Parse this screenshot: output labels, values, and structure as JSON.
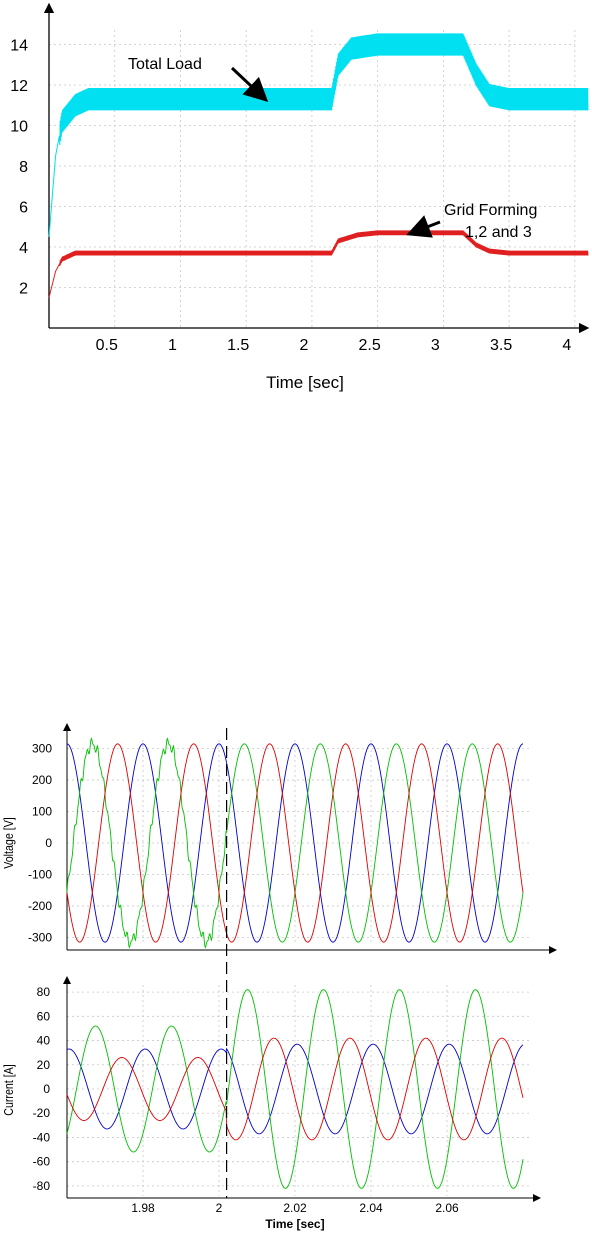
{
  "chart_data": [
    {
      "type": "line",
      "xlabel": "Time [sec]",
      "ylabel": "",
      "xlim": [
        0,
        4.1
      ],
      "ylim": [
        0,
        16
      ],
      "x_ticks": [
        "0.5",
        "1",
        "1.5",
        "2",
        "2.5",
        "3",
        "3.5",
        "4"
      ],
      "y_ticks": [
        "2",
        "4",
        "6",
        "8",
        "10",
        "12",
        "14"
      ],
      "grid": true,
      "annotations": [
        {
          "text": "Total Load",
          "points_to": {
            "x": 1.7,
            "y": 11.2
          }
        },
        {
          "text": "Grid Forming",
          "text_line2": "1,2 and 3",
          "points_to": {
            "x": 2.7,
            "y": 4.6
          }
        }
      ],
      "series": [
        {
          "color": "#00e0f0",
          "points": [
            [
              0,
              4.5
            ],
            [
              0.05,
              8.5
            ],
            [
              0.1,
              10.2
            ],
            [
              0.2,
              11.0
            ],
            [
              0.3,
              11.3
            ],
            [
              1.0,
              11.3
            ],
            [
              2.15,
              11.3
            ],
            [
              2.2,
              13.0
            ],
            [
              2.3,
              13.8
            ],
            [
              2.5,
              14.0
            ],
            [
              3.15,
              14.0
            ],
            [
              3.25,
              12.5
            ],
            [
              3.35,
              11.5
            ],
            [
              3.5,
              11.3
            ],
            [
              4.1,
              11.3
            ]
          ]
        },
        {
          "color": "#e02020",
          "points": [
            [
              0,
              1.5
            ],
            [
              0.05,
              2.8
            ],
            [
              0.1,
              3.4
            ],
            [
              0.2,
              3.7
            ],
            [
              0.4,
              3.7
            ],
            [
              2.15,
              3.7
            ],
            [
              2.2,
              4.3
            ],
            [
              2.35,
              4.6
            ],
            [
              2.5,
              4.7
            ],
            [
              3.15,
              4.7
            ],
            [
              3.25,
              4.1
            ],
            [
              3.35,
              3.8
            ],
            [
              3.5,
              3.7
            ],
            [
              4.1,
              3.7
            ]
          ]
        }
      ]
    },
    {
      "type": "line",
      "xlabel": "",
      "ylabel": "Voltage [V]",
      "xlim": [
        1.96,
        2.08
      ],
      "ylim": [
        -340,
        340
      ],
      "y_ticks": [
        "300",
        "200",
        "100",
        "0",
        "-100",
        "-200",
        "-300"
      ],
      "grid": true,
      "event_line_x": 2.002,
      "series": [
        {
          "color": "#0000d0",
          "amplitude": 315,
          "frequency_hz": 50,
          "phase_deg": 90
        },
        {
          "color": "#00c000",
          "amplitude": 315,
          "frequency_hz": 50,
          "phase_deg": -30
        },
        {
          "color": "#e00000",
          "amplitude": 315,
          "frequency_hz": 50,
          "phase_deg": 210
        }
      ]
    },
    {
      "type": "line",
      "xlabel": "Time [sec]",
      "ylabel": "Current [A]",
      "xlim": [
        1.96,
        2.08
      ],
      "ylim": [
        -90,
        90
      ],
      "x_ticks": [
        "1.98",
        "2",
        "2.02",
        "2.04",
        "2.06"
      ],
      "y_ticks": [
        "80",
        "60",
        "40",
        "20",
        "0",
        "-20",
        "-40",
        "-60",
        "-80"
      ],
      "grid": true,
      "event_line_x": 2.002,
      "series": [
        {
          "color": "#0000d0",
          "amplitude_before": 33,
          "amplitude_after": 37,
          "frequency_hz": 50,
          "phase_deg": 80
        },
        {
          "color": "#00c000",
          "amplitude_before": 52,
          "amplitude_after": 82,
          "frequency_hz": 50,
          "phase_deg": -45
        },
        {
          "color": "#e00000",
          "amplitude_before": 26,
          "amplitude_after": 42,
          "frequency_hz": 50,
          "phase_deg": 190
        }
      ]
    }
  ]
}
